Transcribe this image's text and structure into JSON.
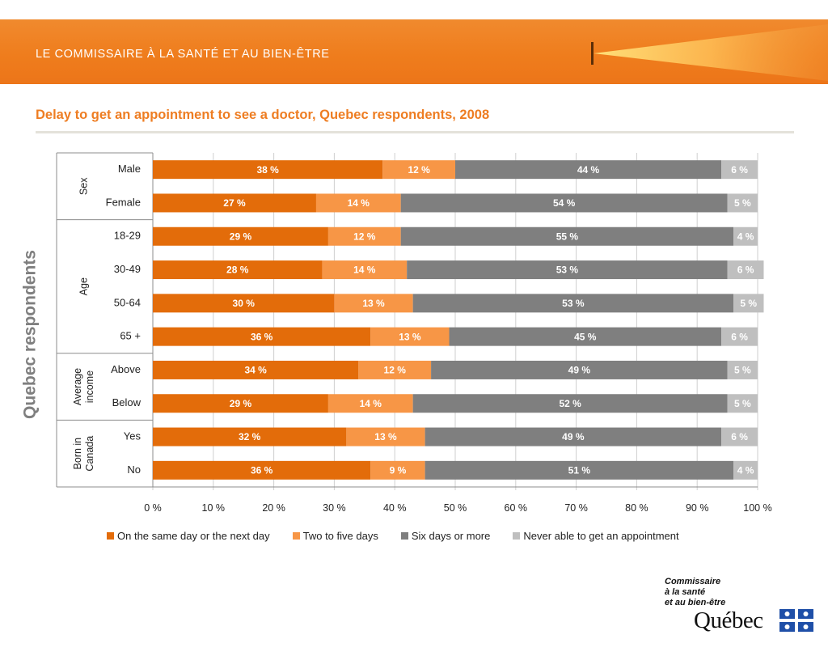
{
  "header": {
    "banner_title": "LE COMMISSAIRE À LA SANTÉ ET AU BIEN-ÊTRE"
  },
  "chart_data": {
    "type": "bar",
    "orientation": "horizontal",
    "stacked": true,
    "title": "Delay to get an appointment to see a doctor, Quebec respondents, 2008",
    "ylabel": "Quebec respondents",
    "xlim": [
      0,
      100
    ],
    "xticks": [
      "0 %",
      "10 %",
      "20 %",
      "30 %",
      "40 %",
      "50 %",
      "60 %",
      "70 %",
      "80 %",
      "90 %",
      "100 %"
    ],
    "groups": [
      {
        "label": "Sex",
        "lines": [
          "Sex"
        ],
        "categories": [
          "Male",
          "Female"
        ]
      },
      {
        "label": "Age",
        "lines": [
          "Age"
        ],
        "categories": [
          "18-29",
          "30-49",
          "50-64",
          "65 +"
        ]
      },
      {
        "label": "Average income",
        "lines": [
          "Average",
          "income"
        ],
        "categories": [
          "Above",
          "Below"
        ]
      },
      {
        "label": "Born in Canada",
        "lines": [
          "Born in",
          "Canada"
        ],
        "categories": [
          "Yes",
          "No"
        ]
      }
    ],
    "categories": [
      "Male",
      "Female",
      "18-29",
      "30-49",
      "50-64",
      "65 +",
      "Above",
      "Below",
      "Yes",
      "No"
    ],
    "series": [
      {
        "name": "On the same day or the next day",
        "color": "#e36c0a",
        "values": [
          38,
          27,
          29,
          28,
          30,
          36,
          34,
          29,
          32,
          36
        ],
        "labels": [
          "38 %",
          "27 %",
          "29 %",
          "28 %",
          "30 %",
          "36 %",
          "34 %",
          "29 %",
          "32 %",
          "36 %"
        ]
      },
      {
        "name": "Two to five days",
        "color": "#f79646",
        "values": [
          12,
          14,
          12,
          14,
          13,
          13,
          12,
          14,
          13,
          9
        ],
        "labels": [
          "12 %",
          "14 %",
          "12 %",
          "14 %",
          "13 %",
          "13 %",
          "12 %",
          "14 %",
          "13 %",
          "9 %"
        ]
      },
      {
        "name": "Six days or more",
        "color": "#7f7f7f",
        "values": [
          44,
          54,
          55,
          53,
          53,
          45,
          49,
          52,
          49,
          51
        ],
        "labels": [
          "44 %",
          "54 %",
          "55 %",
          "53 %",
          "53 %",
          "45 %",
          "49 %",
          "52 %",
          "49 %",
          "51 %"
        ]
      },
      {
        "name": "Never able to get an appointment",
        "color": "#bfbfbf",
        "values": [
          6,
          5,
          4,
          6,
          5,
          6,
          5,
          5,
          6,
          4
        ],
        "labels": [
          "6 %",
          "5 %",
          "4 %",
          "6 %",
          "5 %",
          "6 %",
          "5 %",
          "5 %",
          "6 %",
          "4 %"
        ]
      }
    ],
    "legend_position": "bottom",
    "grid": true
  },
  "logo": {
    "line1": "Commissaire",
    "line2": "à la santé",
    "line3": "et au bien-être",
    "word": "Québec"
  }
}
